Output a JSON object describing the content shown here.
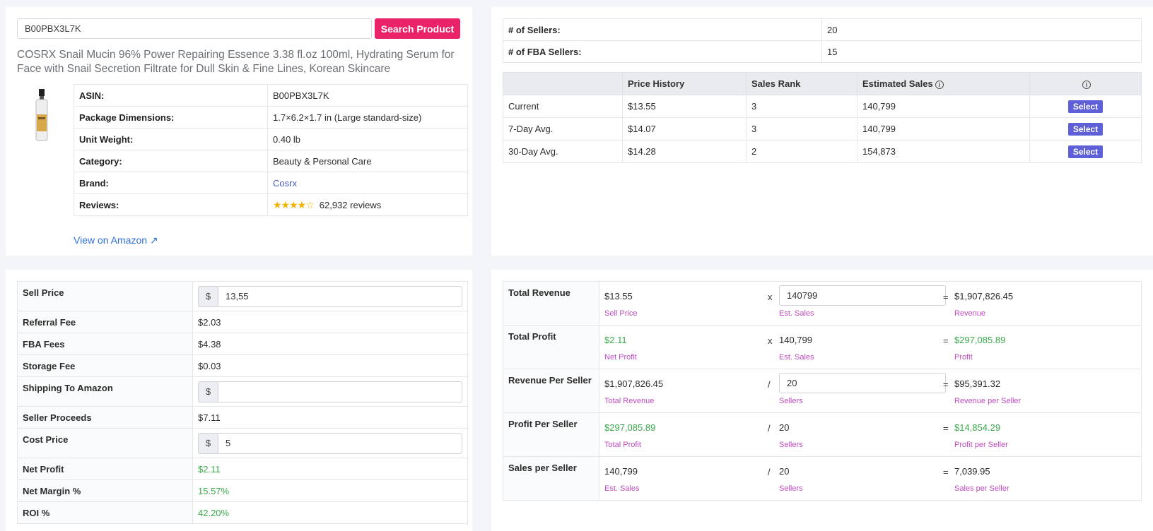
{
  "search": {
    "value": "B00PBX3L7K",
    "button_label": "Search Product"
  },
  "product": {
    "title": "COSRX Snail Mucin 96% Power Repairing Essence 3.38 fl.oz 100ml, Hydrating Serum for Face with Snail Secretion Filtrate for Dull Skin & Fine Lines, Korean Skincare",
    "asin_label": "ASIN:",
    "asin": "B00PBX3L7K",
    "dimensions_label": "Package Dimensions:",
    "dimensions": "1.7×6.2×1.7 in (Large standard-size)",
    "weight_label": "Unit Weight:",
    "weight": "0.40 lb",
    "category_label": "Category:",
    "category": "Beauty & Personal Care",
    "brand_label": "Brand:",
    "brand": "Cosrx",
    "reviews_label": "Reviews:",
    "rating": 4.5,
    "reviews": "62,932 reviews",
    "amazon_link": "View on Amazon"
  },
  "sellers": {
    "sellers_label": "# of Sellers:",
    "sellers": "20",
    "fba_label": "# of FBA Sellers:",
    "fba": "15"
  },
  "history": {
    "headers": [
      "",
      "Price History",
      "Sales Rank",
      "Estimated Sales",
      ""
    ],
    "select_label": "Select",
    "rows": [
      {
        "label": "Current",
        "price": "$13.55",
        "rank": "3",
        "sales": "140,799"
      },
      {
        "label": "7-Day Avg.",
        "price": "$14.07",
        "rank": "3",
        "sales": "140,799"
      },
      {
        "label": "30-Day Avg.",
        "price": "$14.28",
        "rank": "2",
        "sales": "154,873"
      }
    ]
  },
  "fees": {
    "currency": "$",
    "sell_price_label": "Sell Price",
    "sell_price": "13,55",
    "referral_label": "Referral Fee",
    "referral": "$2.03",
    "fba_label": "FBA Fees",
    "fba": "$4.38",
    "storage_label": "Storage Fee",
    "storage": "$0.03",
    "shipping_label": "Shipping To Amazon",
    "shipping": "",
    "proceeds_label": "Seller Proceeds",
    "proceeds": "$7.11",
    "cost_label": "Cost Price",
    "cost": "5",
    "net_profit_label": "Net Profit",
    "net_profit": "$2.11",
    "net_margin_label": "Net Margin %",
    "net_margin": "15.57%",
    "roi_label": "ROI %",
    "roi": "42.20%"
  },
  "calc": {
    "rows": [
      {
        "label": "Total Revenue",
        "a": "$13.55",
        "a_cap": "Sell Price",
        "op": "x",
        "b": "140799",
        "b_cap": "Est. Sales",
        "r": "$1,907,826.45",
        "r_cap": "Revenue"
      },
      {
        "label": "Total Profit",
        "a": "$2.11",
        "a_cap": "Net Profit",
        "op": "x",
        "b": "140,799",
        "b_cap": "Est. Sales",
        "r": "$297,085.89",
        "r_cap": "Profit"
      },
      {
        "label": "Revenue Per Seller",
        "a": "$1,907,826.45",
        "a_cap": "Total Revenue",
        "op": "/",
        "b": "20",
        "b_cap": "Sellers",
        "r": "$95,391.32",
        "r_cap": "Revenue per Seller"
      },
      {
        "label": "Profit Per Seller",
        "a": "$297,085.89",
        "a_cap": "Total Profit",
        "op": "/",
        "b": "20",
        "b_cap": "Sellers",
        "r": "$14,854.29",
        "r_cap": "Profit per Seller"
      },
      {
        "label": "Sales per Seller",
        "a": "140,799",
        "a_cap": "Est. Sales",
        "op": "/",
        "b": "20",
        "b_cap": "Sellers",
        "r": "7,039.95",
        "r_cap": "Sales per Seller"
      }
    ],
    "equals": "="
  },
  "colors": {
    "accent": "#e9226a",
    "select": "#5f5fd8",
    "profit_green": "#3aa94a",
    "caption_purple": "#c04ac0"
  }
}
